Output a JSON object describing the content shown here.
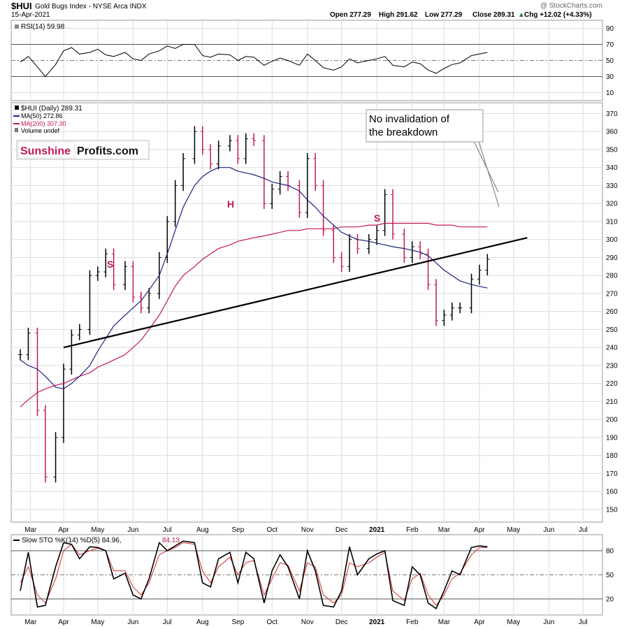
{
  "header": {
    "symbol": "$HUI",
    "name": "Gold Bugs Index - NYSE Arca INDX",
    "date": "15-Apr-2021",
    "watermark": "@ StockCharts.com",
    "open": "Open 277.29",
    "high": "High 291.62",
    "low": "Low 277.29",
    "close": "Close 289.31",
    "chg": "Chg +12.02 (+4.33%)",
    "chg_arrow": "▲"
  },
  "rsi_panel": {
    "label": "RSI(14) 59.98",
    "ticks": [
      90,
      70,
      50,
      30,
      10
    ]
  },
  "price_panel": {
    "legend": [
      "$HUI (Daily) 289.31",
      "MA(50) 272.86",
      "MA(200) 307.30",
      "Volume undef"
    ],
    "legend_colors": [
      "#000000",
      "#1a237e",
      "#c2185b",
      "#555555"
    ],
    "ticks": [
      370,
      360,
      350,
      340,
      330,
      320,
      310,
      300,
      290,
      280,
      270,
      260,
      250,
      240,
      230,
      220,
      210,
      200,
      190,
      180,
      170,
      160,
      150
    ],
    "logo_part1": "Sunshine",
    "logo_part2": "Profits.com",
    "annotation_line1": "No invalidation of",
    "annotation_line2": "the breakdown",
    "hs_labels": [
      "S",
      "H",
      "S"
    ]
  },
  "sto_panel": {
    "label": "Slow STO %K(14) %D(5) 84.96,",
    "label_d": "84.13",
    "ticks": [
      80,
      50,
      20
    ]
  },
  "x_axis": {
    "months": [
      "Mar",
      "Apr",
      "May",
      "Jun",
      "Jul",
      "Aug",
      "Sep",
      "Oct",
      "Nov",
      "Dec",
      "2021",
      "Feb",
      "Mar",
      "Apr",
      "May",
      "Jun",
      "Jul"
    ]
  },
  "colors": {
    "up": "#000000",
    "down": "#c2185b",
    "ma50": "#1a237e",
    "ma200": "#c2185b",
    "grid": "#dddddd",
    "accent_red": "#c2185b"
  },
  "chart_data": {
    "type": "line",
    "title": "$HUI Gold Bugs Index - NYSE Arca INDX",
    "x": [
      "2020-03-01",
      "2020-03-08",
      "2020-03-16",
      "2020-03-23",
      "2020-04-01",
      "2020-04-08",
      "2020-04-15",
      "2020-04-22",
      "2020-05-01",
      "2020-05-08",
      "2020-05-15",
      "2020-05-22",
      "2020-06-01",
      "2020-06-08",
      "2020-06-15",
      "2020-06-22",
      "2020-07-01",
      "2020-07-08",
      "2020-07-15",
      "2020-07-22",
      "2020-08-01",
      "2020-08-08",
      "2020-08-15",
      "2020-08-22",
      "2020-09-01",
      "2020-09-08",
      "2020-09-15",
      "2020-09-22",
      "2020-10-01",
      "2020-10-08",
      "2020-10-15",
      "2020-10-22",
      "2020-11-01",
      "2020-11-08",
      "2020-11-15",
      "2020-11-22",
      "2020-12-01",
      "2020-12-08",
      "2020-12-15",
      "2020-12-22",
      "2021-01-01",
      "2021-01-08",
      "2021-01-15",
      "2021-01-22",
      "2021-02-01",
      "2021-02-08",
      "2021-02-15",
      "2021-02-22",
      "2021-03-01",
      "2021-03-08",
      "2021-03-15",
      "2021-03-22",
      "2021-04-01",
      "2021-04-08",
      "2021-04-15"
    ],
    "series": [
      {
        "name": "$HUI (Daily)",
        "values": [
          236,
          248,
          205,
          168,
          190,
          228,
          247,
          250,
          280,
          282,
          292,
          275,
          285,
          268,
          262,
          270,
          290,
          310,
          330,
          345,
          360,
          350,
          342,
          352,
          355,
          345,
          356,
          355,
          320,
          328,
          335,
          330,
          315,
          345,
          330,
          305,
          290,
          285,
          300,
          295,
          300,
          305,
          325,
          303,
          290,
          296,
          292,
          275,
          255,
          258,
          262,
          262,
          278,
          283,
          289
        ]
      },
      {
        "name": "MA(50)",
        "values": [
          233,
          230,
          228,
          224,
          218,
          217,
          220,
          224,
          230,
          238,
          245,
          252,
          258,
          262,
          266,
          272,
          280,
          292,
          305,
          318,
          330,
          335,
          338,
          340,
          340,
          338,
          337,
          336,
          334,
          332,
          331,
          330,
          327,
          322,
          318,
          313,
          308,
          304,
          302,
          300,
          299,
          298,
          297,
          296,
          295,
          294,
          293,
          291,
          287,
          283,
          280,
          277,
          275,
          274,
          273
        ]
      },
      {
        "name": "MA(200)",
        "values": [
          207,
          211,
          215,
          217,
          219,
          220,
          222,
          224,
          226,
          229,
          231,
          233,
          236,
          240,
          244,
          250,
          258,
          266,
          274,
          280,
          285,
          289,
          292,
          295,
          297,
          299,
          300,
          301,
          302,
          303,
          304,
          305,
          305,
          306,
          306,
          306,
          306,
          307,
          307,
          307,
          308,
          308,
          309,
          309,
          309,
          309,
          309,
          309,
          308,
          308,
          308,
          307,
          307,
          307,
          307
        ]
      }
    ],
    "rsi_values": [
      48,
      55,
      42,
      30,
      45,
      62,
      66,
      58,
      60,
      64,
      57,
      55,
      60,
      52,
      50,
      58,
      62,
      68,
      65,
      70,
      70,
      56,
      54,
      58,
      57,
      50,
      55,
      54,
      44,
      49,
      53,
      50,
      44,
      58,
      50,
      41,
      38,
      42,
      52,
      47,
      50,
      52,
      55,
      44,
      42,
      48,
      46,
      38,
      34,
      40,
      45,
      47,
      56,
      58,
      60
    ],
    "sto_k": [
      30,
      78,
      10,
      12,
      60,
      90,
      88,
      70,
      85,
      84,
      80,
      45,
      52,
      25,
      20,
      45,
      90,
      80,
      86,
      92,
      90,
      40,
      35,
      70,
      78,
      40,
      78,
      70,
      15,
      55,
      75,
      60,
      20,
      80,
      55,
      12,
      10,
      30,
      85,
      50,
      70,
      76,
      80,
      18,
      12,
      60,
      50,
      15,
      8,
      30,
      55,
      50,
      84,
      86,
      85
    ],
    "sto_d": [
      40,
      60,
      25,
      15,
      45,
      80,
      88,
      75,
      80,
      83,
      80,
      55,
      55,
      35,
      25,
      40,
      75,
      80,
      84,
      90,
      88,
      55,
      40,
      60,
      72,
      50,
      65,
      68,
      25,
      45,
      65,
      62,
      30,
      65,
      60,
      25,
      15,
      25,
      65,
      60,
      65,
      72,
      78,
      30,
      18,
      45,
      52,
      25,
      12,
      25,
      45,
      52,
      75,
      84,
      84
    ],
    "ylim": [
      143,
      376
    ],
    "rsi_ylim": [
      0,
      100
    ],
    "sto_ylim": [
      0,
      100
    ],
    "trendline": {
      "x": [
        "2020-04-08",
        "2021-05-20"
      ],
      "y": [
        240,
        301
      ]
    }
  }
}
